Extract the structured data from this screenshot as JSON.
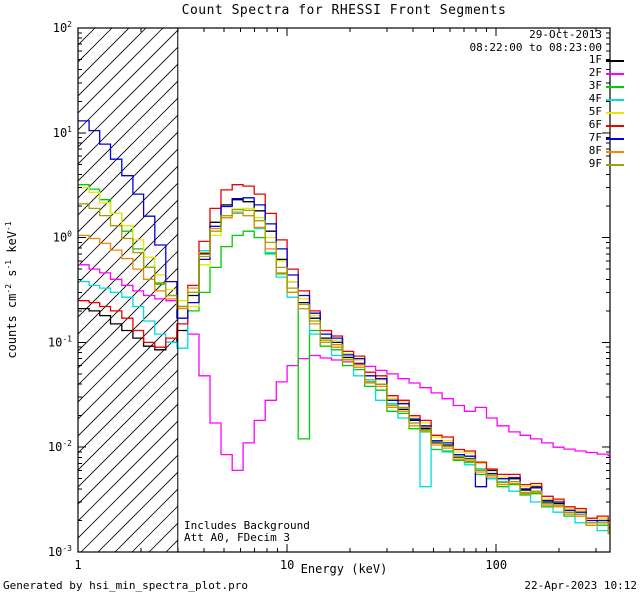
{
  "window": {
    "title": "Count Spectra for RHESSI Front Segments"
  },
  "footer": {
    "left": "Generated by hsi_min_spectra_plot.pro",
    "right": "22-Apr-2023 10:12"
  },
  "chart_data": {
    "type": "line",
    "subtype": "step-log-log-spectra",
    "title": "Count Spectra for RHESSI Front Segments",
    "xlabel": "Energy (keV)",
    "ylabel": "counts cm-2 s-1 keV-1",
    "ylabel_parts": [
      [
        "counts cm",
        0
      ],
      [
        "-2",
        1
      ],
      [
        " s",
        0
      ],
      [
        "-1",
        1
      ],
      [
        " keV",
        0
      ],
      [
        "-1",
        1
      ]
    ],
    "xlim": [
      1,
      350
    ],
    "ylim": [
      0.001,
      100
    ],
    "x_scale": "log",
    "y_scale": "log",
    "x_ticks": [
      1,
      10,
      100
    ],
    "y_tick_exponents": [
      2,
      1,
      0,
      -1,
      -2,
      -3
    ],
    "grid": false,
    "hatch_region": {
      "from": 1,
      "to": 3
    },
    "legend": {
      "position": "top-right",
      "date": "29-Oct-2013",
      "time_range": "08:22:00 to 08:23:00"
    },
    "annotations": [
      "Includes Background",
      "Att A0, FDecim 3"
    ],
    "x": [
      1.0,
      1.13,
      1.27,
      1.43,
      1.62,
      1.83,
      2.06,
      2.33,
      2.63,
      2.97,
      3.35,
      3.79,
      4.28,
      4.83,
      5.46,
      6.16,
      6.96,
      7.86,
      8.88,
      10.0,
      11.3,
      12.8,
      14.4,
      16.3,
      18.4,
      20.8,
      23.5,
      26.5,
      30.0,
      33.9,
      38.3,
      43.2,
      48.8,
      55.1,
      62.3,
      70.4,
      79.5,
      89.8,
      101,
      115,
      130,
      146,
      165,
      187,
      211,
      238,
      269,
      304,
      343
    ],
    "series": [
      {
        "name": "1F",
        "color": "#000000",
        "values": [
          0.21,
          0.2,
          0.18,
          0.15,
          0.13,
          0.11,
          0.092,
          0.085,
          0.1,
          0.13,
          0.28,
          0.7,
          1.4,
          2.05,
          2.3,
          2.2,
          1.8,
          1.15,
          0.62,
          0.38,
          0.24,
          0.17,
          0.11,
          0.1,
          0.072,
          0.063,
          0.042,
          0.04,
          0.026,
          0.023,
          0.018,
          0.015,
          0.011,
          0.0105,
          0.008,
          0.0078,
          0.0062,
          0.006,
          0.0046,
          0.005,
          0.0039,
          0.0042,
          0.003,
          0.0029,
          0.0024,
          0.0023,
          0.0019,
          0.002,
          0.0016
        ]
      },
      {
        "name": "2F",
        "color": "#ff00ff",
        "values": [
          0.55,
          0.5,
          0.46,
          0.4,
          0.35,
          0.31,
          0.28,
          0.26,
          0.25,
          0.22,
          0.12,
          0.048,
          0.017,
          0.0085,
          0.006,
          0.011,
          0.018,
          0.028,
          0.042,
          0.06,
          0.07,
          0.075,
          0.071,
          0.068,
          0.066,
          0.062,
          0.059,
          0.054,
          0.05,
          0.045,
          0.041,
          0.037,
          0.033,
          0.029,
          0.025,
          0.022,
          0.024,
          0.019,
          0.016,
          0.014,
          0.013,
          0.012,
          0.011,
          0.01,
          0.0096,
          0.0092,
          0.0089,
          0.0086,
          0.0083
        ]
      },
      {
        "name": "3F",
        "color": "#00cc00",
        "values": [
          3.2,
          2.9,
          2.3,
          1.7,
          1.15,
          0.78,
          0.52,
          0.36,
          0.28,
          0.22,
          0.2,
          0.3,
          0.52,
          0.82,
          1.05,
          1.15,
          1.0,
          0.7,
          0.45,
          0.3,
          0.012,
          0.13,
          0.092,
          0.085,
          0.06,
          0.055,
          0.038,
          0.035,
          0.022,
          0.021,
          0.015,
          0.014,
          0.0095,
          0.0092,
          0.0075,
          0.0072,
          0.0055,
          0.005,
          0.0042,
          0.0044,
          0.0035,
          0.0036,
          0.0027,
          0.0028,
          0.0022,
          0.0022,
          0.0018,
          0.0018,
          0.0015
        ]
      },
      {
        "name": "4F",
        "color": "#00dddd",
        "values": [
          0.38,
          0.35,
          0.33,
          0.3,
          0.27,
          0.22,
          0.16,
          0.12,
          0.1,
          0.088,
          0.3,
          0.75,
          1.28,
          1.62,
          1.75,
          1.62,
          1.22,
          0.72,
          0.42,
          0.27,
          0.21,
          0.12,
          0.1,
          0.075,
          0.065,
          0.048,
          0.042,
          0.028,
          0.026,
          0.019,
          0.017,
          0.0042,
          0.0115,
          0.009,
          0.0082,
          0.0068,
          0.0062,
          0.005,
          0.0047,
          0.0038,
          0.0037,
          0.003,
          0.0029,
          0.0024,
          0.0023,
          0.0019,
          0.0019,
          0.0016,
          0.0015
        ]
      },
      {
        "name": "5F",
        "color": "#e8e800",
        "values": [
          3.0,
          2.7,
          2.15,
          1.7,
          1.3,
          0.95,
          0.65,
          0.44,
          0.32,
          0.25,
          0.22,
          0.55,
          1.05,
          1.55,
          1.88,
          1.9,
          1.55,
          1.0,
          0.6,
          0.38,
          0.26,
          0.18,
          0.12,
          0.105,
          0.078,
          0.068,
          0.048,
          0.044,
          0.029,
          0.027,
          0.019,
          0.017,
          0.0125,
          0.0115,
          0.009,
          0.0088,
          0.007,
          0.0058,
          0.0052,
          0.0052,
          0.0042,
          0.0043,
          0.0032,
          0.0031,
          0.0026,
          0.0025,
          0.002,
          0.0021,
          0.0017
        ]
      },
      {
        "name": "6F",
        "color": "#ee0000",
        "values": [
          0.25,
          0.24,
          0.22,
          0.2,
          0.17,
          0.13,
          0.1,
          0.09,
          0.11,
          0.15,
          0.35,
          0.92,
          1.9,
          2.85,
          3.2,
          3.1,
          2.6,
          1.7,
          0.95,
          0.5,
          0.31,
          0.2,
          0.13,
          0.115,
          0.082,
          0.074,
          0.052,
          0.048,
          0.031,
          0.028,
          0.02,
          0.018,
          0.013,
          0.0125,
          0.0095,
          0.0092,
          0.0072,
          0.0062,
          0.0055,
          0.0055,
          0.0044,
          0.0045,
          0.0034,
          0.0032,
          0.0027,
          0.0026,
          0.0021,
          0.0022,
          0.0018
        ]
      },
      {
        "name": "7F",
        "color": "#0000dd",
        "values": [
          13.0,
          10.5,
          7.8,
          5.6,
          3.9,
          2.6,
          1.6,
          0.85,
          0.38,
          0.17,
          0.24,
          0.62,
          1.28,
          1.98,
          2.35,
          2.4,
          2.05,
          1.35,
          0.78,
          0.44,
          0.28,
          0.19,
          0.12,
          0.11,
          0.076,
          0.07,
          0.048,
          0.045,
          0.028,
          0.026,
          0.0185,
          0.016,
          0.0115,
          0.011,
          0.0085,
          0.0082,
          0.0042,
          0.0056,
          0.005,
          0.0051,
          0.004,
          0.0041,
          0.0031,
          0.003,
          0.0025,
          0.0024,
          0.002,
          0.002,
          0.0017
        ]
      },
      {
        "name": "8F",
        "color": "#ee8800",
        "values": [
          1.05,
          0.98,
          0.88,
          0.76,
          0.63,
          0.5,
          0.4,
          0.31,
          0.26,
          0.21,
          0.33,
          0.72,
          1.22,
          1.55,
          1.7,
          1.62,
          1.25,
          0.78,
          0.46,
          0.3,
          0.21,
          0.15,
          0.1,
          0.09,
          0.065,
          0.058,
          0.041,
          0.038,
          0.024,
          0.022,
          0.016,
          0.0145,
          0.0105,
          0.0098,
          0.0077,
          0.0074,
          0.0058,
          0.0052,
          0.0044,
          0.0045,
          0.0036,
          0.0037,
          0.0028,
          0.0027,
          0.0023,
          0.0022,
          0.0018,
          0.0019,
          0.0015
        ]
      },
      {
        "name": "9F",
        "color": "#a0a000",
        "values": [
          2.1,
          1.9,
          1.62,
          1.3,
          0.98,
          0.72,
          0.52,
          0.37,
          0.28,
          0.22,
          0.3,
          0.66,
          1.15,
          1.62,
          1.85,
          1.82,
          1.45,
          0.9,
          0.52,
          0.33,
          0.23,
          0.16,
          0.105,
          0.095,
          0.069,
          0.061,
          0.044,
          0.04,
          0.025,
          0.024,
          0.017,
          0.0155,
          0.0112,
          0.0102,
          0.0081,
          0.0077,
          0.006,
          0.0054,
          0.0046,
          0.0047,
          0.0037,
          0.0038,
          0.0029,
          0.0028,
          0.0024,
          0.0023,
          0.0019,
          0.0019,
          0.0016
        ]
      }
    ]
  }
}
